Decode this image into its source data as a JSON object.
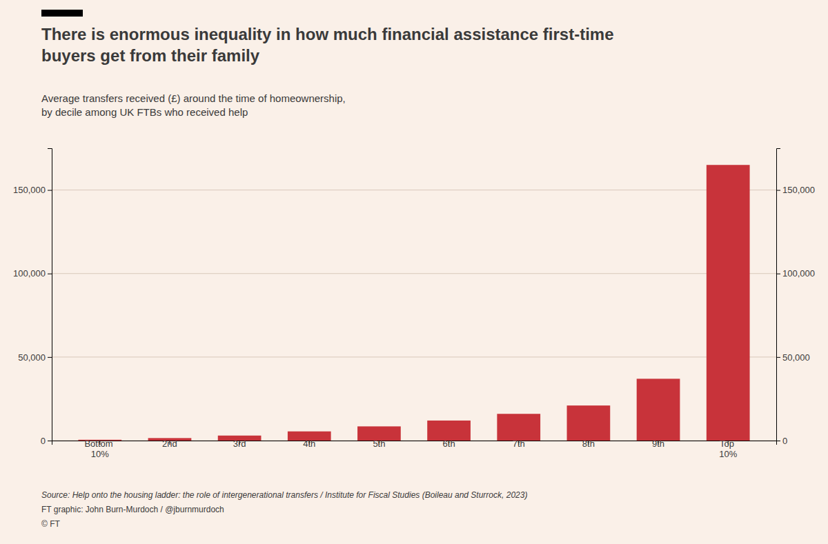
{
  "chart_data": {
    "type": "bar",
    "title": "There is enormous inequality in how much financial assistance first-time\nbuyers get from their family",
    "subtitle": "Average transfers received (£) around the time of homeownership,\nby decile among UK FTBs who received help",
    "categories": [
      "Bottom\n10%",
      "2nd",
      "3rd",
      "4th",
      "5th",
      "6th",
      "7th",
      "8th",
      "9th",
      "Top\n10%"
    ],
    "values": [
      500,
      1500,
      3000,
      5500,
      8500,
      12000,
      16000,
      21000,
      37000,
      165000
    ],
    "color": "#C8333A",
    "ylim": [
      0,
      175000
    ],
    "yticks": [
      0,
      {
        "value": 50000,
        "label": "50,000"
      },
      {
        "value": 100000,
        "label": "100,000"
      },
      {
        "value": 150000,
        "label": "150,000"
      }
    ],
    "y2lim": [
      0,
      175000
    ],
    "y2ticks": [
      0,
      {
        "value": 50000,
        "label": "50,000"
      },
      {
        "value": 100000,
        "label": "100,000"
      },
      {
        "value": 150000,
        "label": "150,000"
      }
    ],
    "grid": true,
    "annotations": [
      "Source: Help onto the housing ladder: the role of intergenerational transfers / Institute for Fiscal Studies (Boileau and Sturrock, 2023)",
      "FT graphic: John Burn-Murdoch / @jburnmurdoch",
      "© FT"
    ]
  }
}
